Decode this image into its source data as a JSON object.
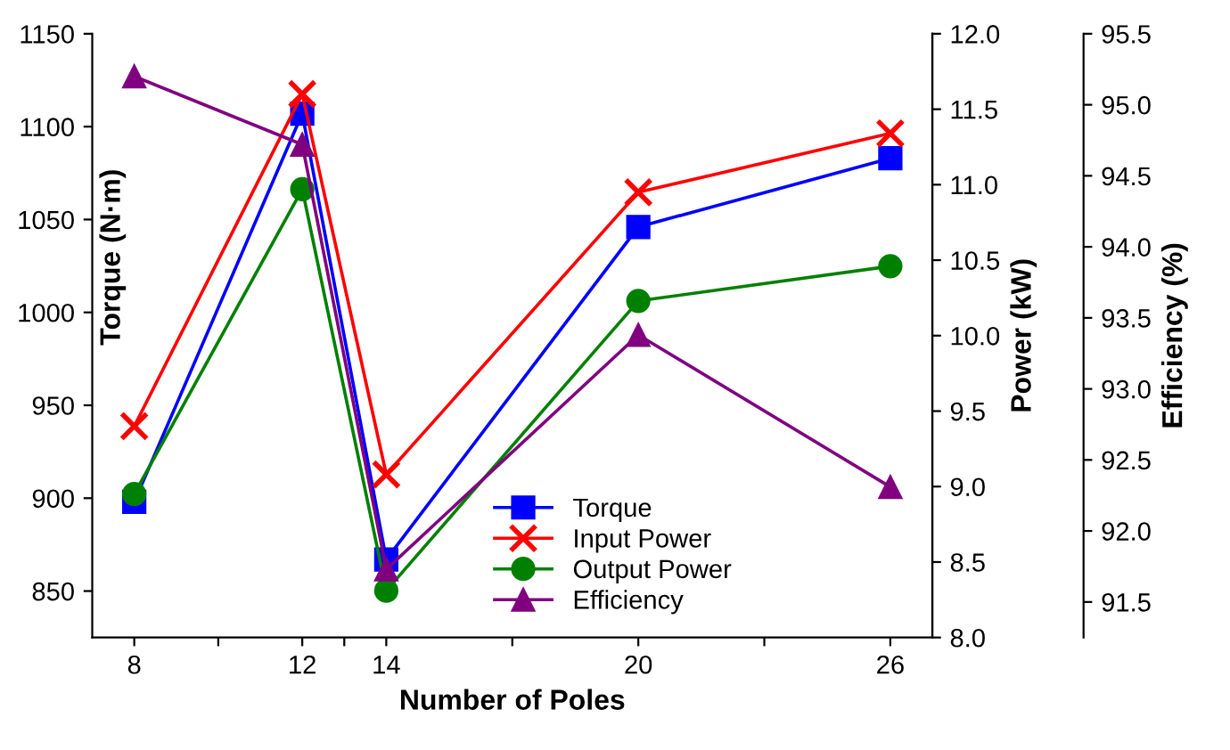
{
  "chart_data": {
    "type": "line",
    "xlabel": "Number of Poles",
    "ylabel": "Torque (N·m)",
    "y2label": "Power (kW)",
    "y3label": "Efficiency (%)",
    "x": [
      8,
      12,
      14,
      20,
      26
    ],
    "xlim": [
      7,
      27
    ],
    "xticks": [
      8,
      {
        "value": 10,
        "label": null
      },
      12,
      {
        "value": 13,
        "label": null
      },
      14,
      {
        "value": 17,
        "label": null
      },
      20,
      {
        "value": 23,
        "label": null
      },
      26
    ],
    "ylim": [
      825,
      1150
    ],
    "yticks": [
      850,
      900,
      950,
      1000,
      1050,
      1100,
      1150
    ],
    "y2lim": [
      8,
      12
    ],
    "y2ticks": [
      {
        "value": 8,
        "label": "8.0"
      },
      {
        "value": 8.5,
        "label": "8.5"
      },
      {
        "value": 9,
        "label": "9.0"
      },
      {
        "value": 9.5,
        "label": "9.5"
      },
      {
        "value": 10,
        "label": "10.0"
      },
      {
        "value": 10.5,
        "label": "10.5"
      },
      {
        "value": 11,
        "label": "11.0"
      },
      {
        "value": 11.5,
        "label": "11.5"
      },
      {
        "value": 12,
        "label": "12.0"
      }
    ],
    "y3lim": [
      91.25,
      95.5
    ],
    "y3ticks": [
      {
        "value": 91.5,
        "label": "91.5"
      },
      {
        "value": 92,
        "label": "92.0"
      },
      {
        "value": 92.5,
        "label": "92.5"
      },
      {
        "value": 93,
        "label": "93.0"
      },
      {
        "value": 93.5,
        "label": "93.5"
      },
      {
        "value": 94,
        "label": "94.0"
      },
      {
        "value": 94.5,
        "label": "94.5"
      },
      {
        "value": 95,
        "label": "95.0"
      },
      {
        "value": 95.5,
        "label": "95.5"
      }
    ],
    "legend": "bottom",
    "grid": false,
    "line_style": "solid",
    "series": [
      {
        "name": "Torque",
        "color": "#0000ff",
        "marker": "square",
        "values": [
          898,
          1107,
          867,
          1046,
          1083
        ]
      },
      {
        "name": "Input Power",
        "color": "#ff0000",
        "marker": "cross",
        "axis": "y2",
        "values": [
          9.4,
          11.6,
          9.08,
          10.95,
          11.34
        ]
      },
      {
        "name": "Output Power",
        "color": "#008000",
        "marker": "circle",
        "axis": "y2",
        "values": [
          8.95,
          10.97,
          8.31,
          10.23,
          10.46
        ]
      },
      {
        "name": "Efficiency",
        "color": "#800080",
        "marker": "triangle",
        "axis": "y3",
        "values": [
          95.2,
          94.72,
          91.73,
          93.38,
          92.31
        ]
      }
    ]
  }
}
